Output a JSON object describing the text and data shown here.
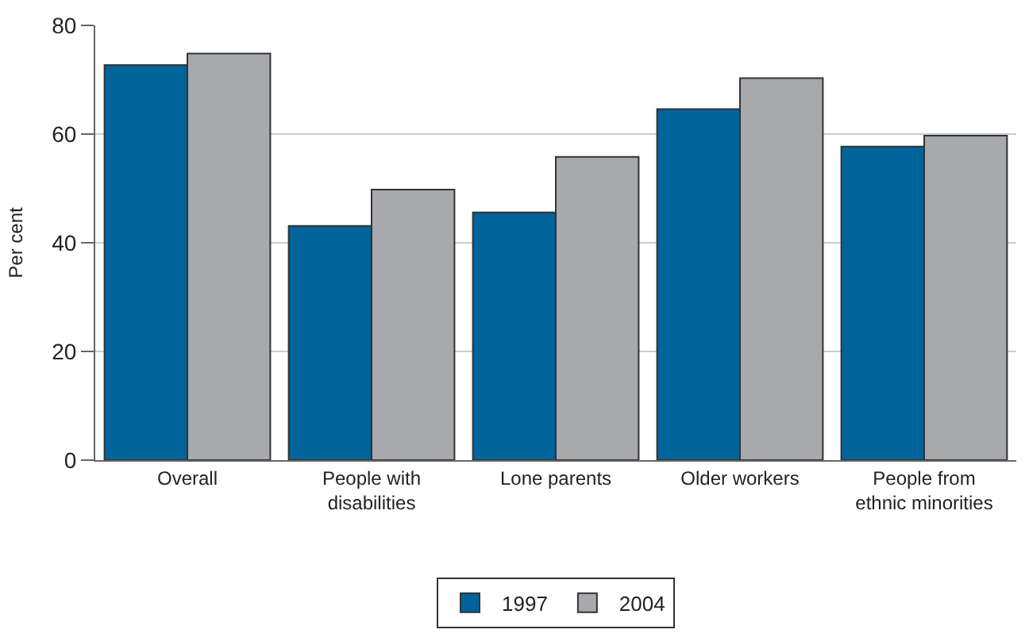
{
  "chart_data": {
    "type": "bar",
    "ylabel": "Per cent",
    "categories": [
      "Overall",
      "People with\ndisabilities",
      "Lone parents",
      "Older workers",
      "People from\nethnic minorities"
    ],
    "series": [
      {
        "name": "1997",
        "color": "#00639a",
        "values": [
          72.7,
          43.1,
          45.6,
          64.6,
          57.7
        ]
      },
      {
        "name": "2004",
        "color": "#a8a9ad",
        "values": [
          74.8,
          49.8,
          55.8,
          70.3,
          59.7
        ]
      }
    ],
    "ylim": [
      0,
      80
    ],
    "yticks": [
      0,
      20,
      40,
      60,
      80
    ],
    "grid": "y",
    "legend": "bottom"
  }
}
